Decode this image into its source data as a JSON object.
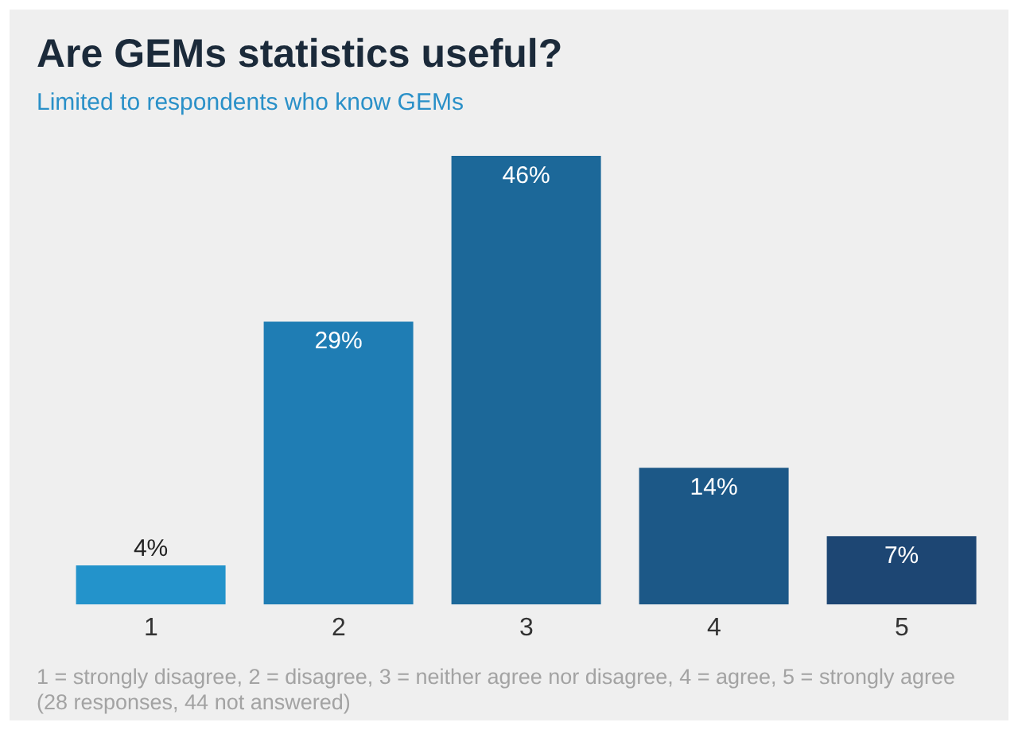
{
  "chart_data": {
    "type": "bar",
    "title": "Are GEMs statistics useful?",
    "subtitle": "Limited to respondents who know GEMs",
    "categories": [
      "1",
      "2",
      "3",
      "4",
      "5"
    ],
    "values": [
      4,
      29,
      46,
      14,
      7
    ],
    "colors": [
      "#2393cb",
      "#1f7db4",
      "#1c6899",
      "#1c5887",
      "#1d4673"
    ],
    "value_labels": [
      "4%",
      "29%",
      "46%",
      "14%",
      "7%"
    ],
    "grid": false,
    "legend": false,
    "annotations": [
      "1 = strongly disagree, 2 = disagree, 3 = neither agree nor disagree, 4 = agree, 5 = strongly agree",
      "(28 responses, 44 not answered)"
    ]
  }
}
